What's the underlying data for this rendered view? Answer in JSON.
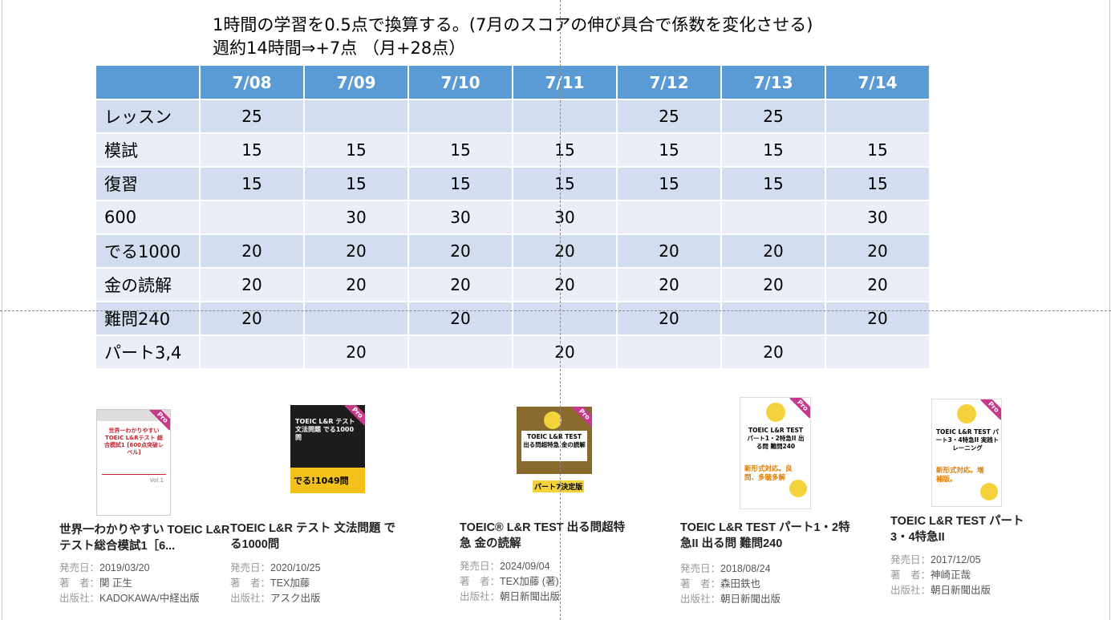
{
  "notes": {
    "line1": "1時間の学習を0.5点で換算する。(7月のスコアの伸び具合で係数を変化させる)",
    "line2": "週約14時間⇒+7点 （月+28点）"
  },
  "schedule": {
    "columns": [
      "",
      "7/08",
      "7/09",
      "7/10",
      "7/11",
      "7/12",
      "7/13",
      "7/14"
    ],
    "rows": [
      {
        "label": "レッスン",
        "cells": [
          "25",
          "",
          "",
          "",
          "25",
          "25",
          ""
        ]
      },
      {
        "label": "模試",
        "cells": [
          "15",
          "15",
          "15",
          "15",
          "15",
          "15",
          "15"
        ]
      },
      {
        "label": "復習",
        "cells": [
          "15",
          "15",
          "15",
          "15",
          "15",
          "15",
          "15"
        ]
      },
      {
        "label": "600",
        "cells": [
          "",
          "30",
          "30",
          "30",
          "",
          "",
          "30"
        ]
      },
      {
        "label": "でる1000",
        "cells": [
          "20",
          "20",
          "20",
          "20",
          "20",
          "20",
          "20"
        ]
      },
      {
        "label": "金の読解",
        "cells": [
          "20",
          "20",
          "20",
          "20",
          "20",
          "20",
          "20"
        ]
      },
      {
        "label": "難問240",
        "cells": [
          "20",
          "",
          "20",
          "",
          "20",
          "",
          "20"
        ]
      },
      {
        "label": "パート3,4",
        "cells": [
          "",
          "20",
          "",
          "20",
          "",
          "20",
          ""
        ]
      }
    ]
  },
  "books": [
    {
      "title": "世界一わかりやすい TOEIC L&Rテスト総合模試1［6...",
      "release_label": "発売日：",
      "release": "2019/03/20",
      "author_label": "著　者：",
      "author": "関 正生",
      "publisher_label": "出版社：",
      "publisher": "KADOKAWA/中経出版",
      "cover_title": "世界一わかりやすい TOEIC L&Rテスト 総合模試1 [600点突破レベル]",
      "cover_badge": "Pro",
      "cover_volume": "Vol.1"
    },
    {
      "title": "TOEIC L&R テスト 文法問題 でる1000問",
      "release_label": "発売日：",
      "release": "2020/10/25",
      "author_label": "著　者：",
      "author": "TEX加藤",
      "publisher_label": "出版社：",
      "publisher": "アスク出版",
      "cover_title": "TOEIC L&R テスト 文法問題 でる1000問",
      "cover_badge": "Pro",
      "cover_big": "でる!1049問"
    },
    {
      "title": "TOEIC® L&R TEST 出る問超特急 金の読解",
      "release_label": "発売日：",
      "release": "2024/09/04",
      "author_label": "著　者：",
      "author": "TEX加藤 (著)",
      "publisher_label": "出版社：",
      "publisher": "朝日新聞出版",
      "cover_title": "TOEIC L&R TEST 出る問超特急 金の読解",
      "cover_badge": "Pro",
      "cover_big": "パート7決定版"
    },
    {
      "title": "TOEIC L&R TEST パート1・2特急II 出る問 難問240",
      "release_label": "発売日：",
      "release": "2018/08/24",
      "author_label": "著　者：",
      "author": "森田鉄也",
      "publisher_label": "出版社：",
      "publisher": "朝日新聞出版",
      "cover_title": "TOEIC L&R TEST パート1・2特急II 出る問 難問240",
      "cover_badge": "Pro",
      "cover_big": "新形式対応。良問、多聴多解"
    },
    {
      "title": "TOEIC L&R TEST パート3・4特急II",
      "release_label": "発売日：",
      "release": "2017/12/05",
      "author_label": "著　者：",
      "author": "神崎正哉",
      "publisher_label": "出版社：",
      "publisher": "朝日新聞出版",
      "cover_title": "TOEIC L&R TEST パート3・4特急II 実践トレーニング",
      "cover_badge": "Pro",
      "cover_big": "新形式対応。増補版。"
    }
  ]
}
